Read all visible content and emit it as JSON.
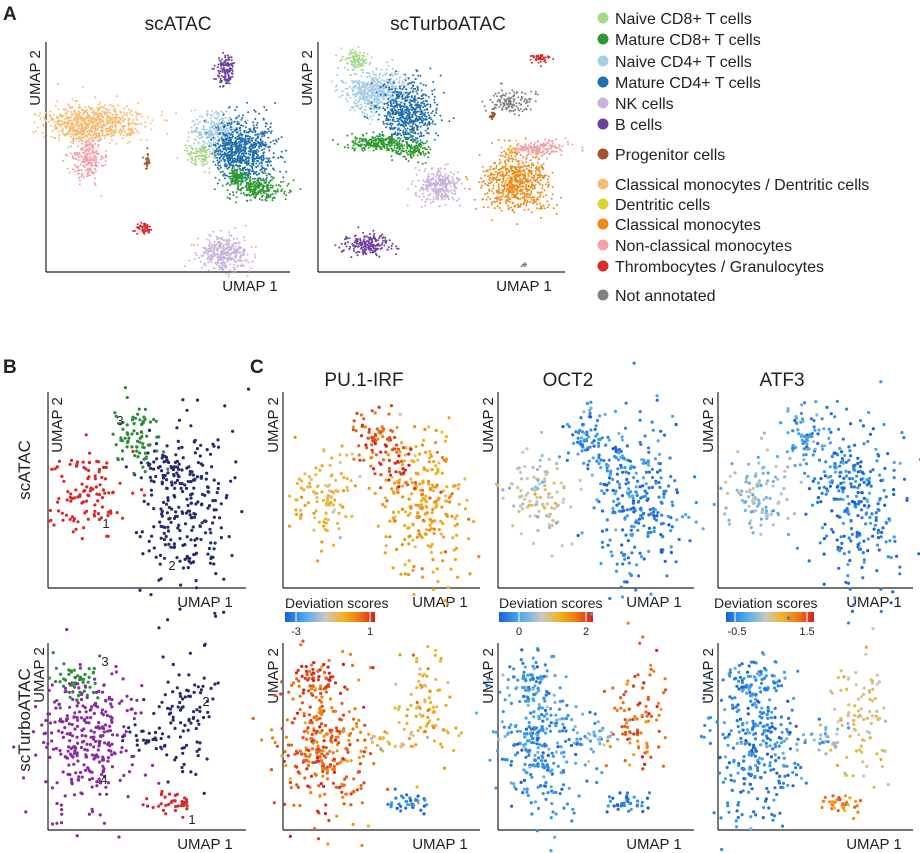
{
  "panels": {
    "A": "A",
    "B": "B",
    "C": "C"
  },
  "panel_a": {
    "plots": [
      {
        "title": "scATAC",
        "xlabel": "UMAP 1",
        "ylabel": "UMAP 2"
      },
      {
        "title": "scTurboATAC",
        "xlabel": "UMAP 1",
        "ylabel": "UMAP 2"
      }
    ],
    "legend": [
      {
        "label": "Naive CD8+ T cells",
        "color": "#a6d98a"
      },
      {
        "label": "Mature CD8+ T cells",
        "color": "#2e9a2e"
      },
      {
        "label": "Naive CD4+ T cells",
        "color": "#a8cde6"
      },
      {
        "label": "Mature CD4+ T cells",
        "color": "#1f6fb0"
      },
      {
        "label": "NK cells",
        "color": "#c9b3dc"
      },
      {
        "label": "B cells",
        "color": "#6a3fa0"
      },
      {
        "label": "Progenitor cells",
        "color": "#a5522a"
      },
      {
        "label": "Classical monocytes / Dentritic cells",
        "color": "#f6bd74"
      },
      {
        "label": "Dentritic cells",
        "color": "#d9d633"
      },
      {
        "label": "Classical monocytes",
        "color": "#f08a16"
      },
      {
        "label": "Non-classical monocytes",
        "color": "#f3a1a6"
      },
      {
        "label": "Thrombocytes / Granulocytes",
        "color": "#d92a2a"
      },
      {
        "label": "Not annotated",
        "color": "#808080"
      }
    ]
  },
  "panel_b": {
    "rows": [
      {
        "row_label": "scATAC",
        "xlabel": "UMAP 1",
        "ylabel": "UMAP 2",
        "clusters": [
          {
            "id": "1",
            "color": "#d92a2a"
          },
          {
            "id": "2",
            "color": "#252c6e"
          },
          {
            "id": "3",
            "color": "#2e8b3a"
          }
        ]
      },
      {
        "row_label": "scTurboATAC",
        "xlabel": "UMAP 1",
        "ylabel": "UMAP 2",
        "clusters": [
          {
            "id": "1",
            "color": "#d92a2a"
          },
          {
            "id": "2",
            "color": "#252c6e"
          },
          {
            "id": "3",
            "color": "#2e8b3a"
          },
          {
            "id": "4",
            "color": "#8a2ca0"
          }
        ]
      }
    ]
  },
  "panel_c": {
    "motifs": [
      {
        "title": "PU.1-IRF",
        "colorbar_label": "Deviation scores",
        "ticks": [
          "-3",
          "1"
        ],
        "range": [
          -3.5,
          1.3
        ]
      },
      {
        "title": "OCT2",
        "colorbar_label": "Deviation scores",
        "ticks": [
          "0",
          "2"
        ],
        "range": [
          -0.6,
          2.2
        ]
      },
      {
        "title": "ATF3",
        "colorbar_label": "Deviation scores",
        "ticks": [
          "-0.5",
          "1.5"
        ],
        "range": [
          -0.7,
          1.7
        ]
      }
    ],
    "xlabel": "UMAP 1",
    "ylabel": "UMAP 2",
    "colormap": [
      "#1a5fd6",
      "#42a6ee",
      "#c8c8c8",
      "#f2b21c",
      "#ee7a12",
      "#d71f1f"
    ]
  },
  "chart_data": [
    {
      "type": "scatter",
      "id": "A-scATAC",
      "title": "scATAC",
      "xlabel": "UMAP 1",
      "ylabel": "UMAP 2",
      "clusters": [
        "Classical monocytes / Dentritic cells",
        "Non-classical monocytes",
        "B cells",
        "Naive CD4+ T cells",
        "Mature CD4+ T cells",
        "Naive CD8+ T cells",
        "Mature CD8+ T cells",
        "NK cells",
        "Thrombocytes / Granulocytes",
        "Progenitor cells"
      ]
    },
    {
      "type": "scatter",
      "id": "A-scTurboATAC",
      "title": "scTurboATAC",
      "xlabel": "UMAP 1",
      "ylabel": "UMAP 2",
      "clusters": [
        "Naive CD8+ T cells",
        "Naive CD4+ T cells",
        "Mature CD4+ T cells",
        "Mature CD8+ T cells",
        "NK cells",
        "B cells",
        "Thrombocytes / Granulocytes",
        "Not annotated",
        "Progenitor cells",
        "Dentritic cells",
        "Classical monocytes",
        "Non-classical monocytes"
      ]
    },
    {
      "type": "scatter",
      "id": "B-scATAC",
      "title": "scATAC",
      "xlabel": "UMAP 1",
      "ylabel": "UMAP 2",
      "clusters": [
        "1",
        "2",
        "3"
      ]
    },
    {
      "type": "scatter",
      "id": "B-scTurboATAC",
      "title": "scTurboATAC",
      "xlabel": "UMAP 1",
      "ylabel": "UMAP 2",
      "clusters": [
        "1",
        "2",
        "3",
        "4"
      ]
    },
    {
      "type": "scatter",
      "id": "C",
      "series": [
        {
          "name": "PU.1-IRF",
          "colorbar_range": [
            -3,
            1
          ]
        },
        {
          "name": "OCT2",
          "colorbar_range": [
            0,
            2
          ]
        },
        {
          "name": "ATF3",
          "colorbar_range": [
            -0.5,
            1.5
          ]
        }
      ],
      "color_label": "Deviation scores",
      "xlabel": "UMAP 1",
      "ylabel": "UMAP 2"
    }
  ]
}
